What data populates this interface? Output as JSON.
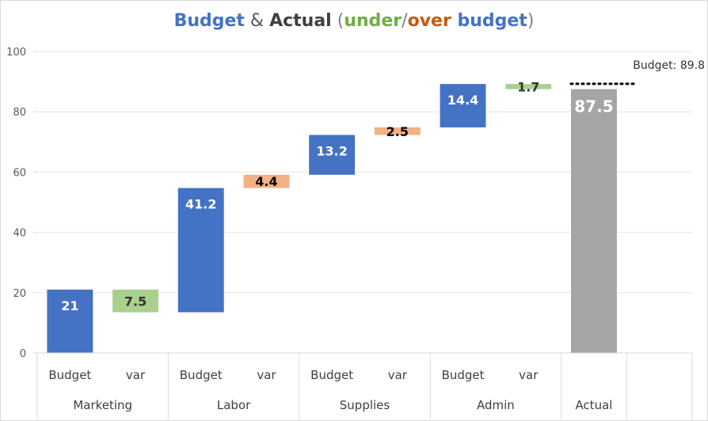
{
  "chart_data": {
    "type": "bar",
    "subtype": "waterfall",
    "title_parts": [
      {
        "text": "Budget",
        "color": "#4472c4",
        "bold": true
      },
      {
        "text": " & ",
        "color": "#595959",
        "bold": false
      },
      {
        "text": "Actual",
        "color": "#404040",
        "bold": true
      },
      {
        "text": " (",
        "color": "#7f7f7f",
        "bold": false
      },
      {
        "text": "under",
        "color": "#70ad47",
        "bold": true
      },
      {
        "text": "/",
        "color": "#7f7f7f",
        "bold": false
      },
      {
        "text": "over",
        "color": "#c55a11",
        "bold": true
      },
      {
        "text": " budget",
        "color": "#4472c4",
        "bold": true
      },
      {
        "text": ")",
        "color": "#7f7f7f",
        "bold": false
      }
    ],
    "ylim": [
      0,
      100
    ],
    "yticks": [
      0,
      20,
      40,
      60,
      80,
      100
    ],
    "grid": true,
    "groups": [
      "Marketing",
      "Labor",
      "Supplies",
      "Admin",
      "Actual",
      ""
    ],
    "categories": [
      {
        "group": "Marketing",
        "label": "Budget"
      },
      {
        "group": "Marketing",
        "label": "var"
      },
      {
        "group": "Labor",
        "label": "Budget"
      },
      {
        "group": "Labor",
        "label": "var"
      },
      {
        "group": "Supplies",
        "label": "Budget"
      },
      {
        "group": "Supplies",
        "label": "var"
      },
      {
        "group": "Admin",
        "label": "Budget"
      },
      {
        "group": "Admin",
        "label": "var"
      },
      {
        "group": "Actual",
        "label": ""
      },
      {
        "group": "",
        "label": ""
      }
    ],
    "bars": [
      {
        "name": "marketing-budget",
        "start": 0,
        "end": 21,
        "label": "21",
        "kind": "budget"
      },
      {
        "name": "marketing-var",
        "start": 21,
        "end": 13.5,
        "label": "7.5",
        "kind": "under"
      },
      {
        "name": "labor-budget",
        "start": 13.5,
        "end": 54.7,
        "label": "41.2",
        "kind": "budget"
      },
      {
        "name": "labor-var",
        "start": 54.7,
        "end": 59.1,
        "label": "4.4",
        "kind": "over"
      },
      {
        "name": "supplies-budget",
        "start": 59.1,
        "end": 72.3,
        "label": "13.2",
        "kind": "budget"
      },
      {
        "name": "supplies-var",
        "start": 72.3,
        "end": 74.8,
        "label": "2.5",
        "kind": "over"
      },
      {
        "name": "admin-budget",
        "start": 74.8,
        "end": 89.2,
        "label": "14.4",
        "kind": "budget"
      },
      {
        "name": "admin-var",
        "start": 89.2,
        "end": 87.5,
        "label": "1.7",
        "kind": "under"
      },
      {
        "name": "actual",
        "start": 0,
        "end": 87.5,
        "label": "87.5",
        "kind": "actual"
      }
    ],
    "budget_line": {
      "value": 89.8,
      "label": "Budget: 89.8"
    },
    "colors": {
      "budget": "#4472c4",
      "under": "#a9d18e",
      "over": "#f4b183",
      "actual": "#a5a5a5"
    }
  }
}
